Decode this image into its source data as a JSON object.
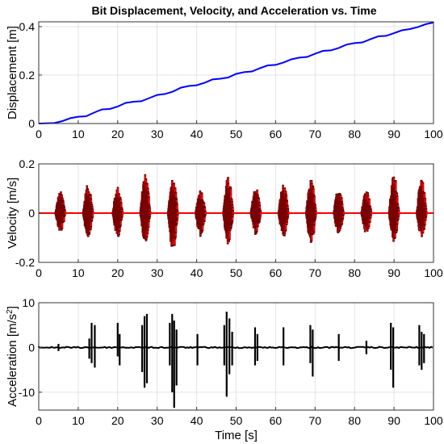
{
  "figure": {
    "title": "Bit Displacement, Velocity, and Acceleration vs. Time"
  },
  "chart_data": [
    {
      "type": "line",
      "ylabel": "Displacement [m]",
      "xlim": [
        0,
        100
      ],
      "ylim": [
        0,
        0.42
      ],
      "x_ticks": [
        0,
        10,
        20,
        30,
        40,
        50,
        60,
        70,
        80,
        90,
        100
      ],
      "x_tick_labels": [
        "0",
        "10",
        "20",
        "30",
        "40",
        "50",
        "60",
        "70",
        "80",
        "90",
        "100"
      ],
      "y_ticks": [
        0,
        0.2,
        0.4
      ],
      "y_tick_labels": [
        "0",
        "0.2",
        "0.4"
      ],
      "grid": true,
      "color": "#0000ff",
      "series": [
        {
          "x": [
            0,
            4,
            6,
            8,
            10,
            12,
            14,
            16,
            18,
            20,
            22,
            24,
            26,
            28,
            30,
            32,
            34,
            36,
            38,
            40,
            42,
            44,
            46,
            48,
            50,
            52,
            54,
            56,
            58,
            60,
            62,
            64,
            66,
            68,
            70,
            72,
            74,
            76,
            78,
            80,
            82,
            84,
            86,
            88,
            90,
            92,
            94,
            96,
            98,
            100
          ],
          "values": [
            0,
            0.002,
            0.01,
            0.022,
            0.028,
            0.03,
            0.045,
            0.058,
            0.06,
            0.07,
            0.085,
            0.09,
            0.092,
            0.105,
            0.118,
            0.122,
            0.132,
            0.148,
            0.155,
            0.158,
            0.168,
            0.182,
            0.185,
            0.19,
            0.205,
            0.212,
            0.215,
            0.228,
            0.24,
            0.242,
            0.252,
            0.265,
            0.272,
            0.275,
            0.288,
            0.3,
            0.302,
            0.312,
            0.326,
            0.332,
            0.335,
            0.348,
            0.36,
            0.362,
            0.373,
            0.385,
            0.39,
            0.398,
            0.41,
            0.417
          ]
        }
      ]
    },
    {
      "type": "line",
      "ylabel": "Velocity [m/s]",
      "xlim": [
        0,
        100
      ],
      "ylim": [
        -0.2,
        0.2
      ],
      "x_ticks": [
        0,
        10,
        20,
        30,
        40,
        50,
        60,
        70,
        80,
        90,
        100
      ],
      "x_tick_labels": [
        "0",
        "10",
        "20",
        "30",
        "40",
        "50",
        "60",
        "70",
        "80",
        "90",
        "100"
      ],
      "y_ticks": [
        -0.2,
        0,
        0.2
      ],
      "y_tick_labels": [
        "-0.2",
        "0",
        "0.2"
      ],
      "grid": true,
      "color": "#ff0000",
      "edge_color": "#5a0000",
      "glow_color": "#ff66cc",
      "oscillation_bursts": [
        {
          "center": 5.5,
          "width": 2.6,
          "max": 0.09,
          "min": -0.08
        },
        {
          "center": 12.5,
          "width": 2.6,
          "max": 0.12,
          "min": -0.1
        },
        {
          "center": 20.0,
          "width": 2.6,
          "max": 0.11,
          "min": -0.1
        },
        {
          "center": 27.0,
          "width": 2.6,
          "max": 0.165,
          "min": -0.12
        },
        {
          "center": 34.0,
          "width": 2.6,
          "max": 0.14,
          "min": -0.155
        },
        {
          "center": 41.0,
          "width": 2.6,
          "max": 0.1,
          "min": -0.1
        },
        {
          "center": 48.0,
          "width": 2.6,
          "max": 0.15,
          "min": -0.13
        },
        {
          "center": 55.0,
          "width": 2.6,
          "max": 0.11,
          "min": -0.09
        },
        {
          "center": 62.0,
          "width": 2.6,
          "max": 0.12,
          "min": -0.1
        },
        {
          "center": 69.0,
          "width": 2.6,
          "max": 0.14,
          "min": -0.13
        },
        {
          "center": 76.0,
          "width": 2.6,
          "max": 0.11,
          "min": -0.09
        },
        {
          "center": 83.0,
          "width": 2.6,
          "max": 0.1,
          "min": -0.09
        },
        {
          "center": 90.0,
          "width": 2.6,
          "max": 0.16,
          "min": -0.12
        },
        {
          "center": 97.0,
          "width": 2.6,
          "max": 0.14,
          "min": -0.1
        }
      ]
    },
    {
      "type": "line",
      "ylabel": "Acceleration [m/s²]",
      "xlabel": "Time [s]",
      "xlim": [
        0,
        100
      ],
      "ylim": [
        -14,
        10
      ],
      "x_ticks": [
        0,
        10,
        20,
        30,
        40,
        50,
        60,
        70,
        80,
        90,
        100
      ],
      "x_tick_labels": [
        "0",
        "10",
        "20",
        "30",
        "40",
        "50",
        "60",
        "70",
        "80",
        "90",
        "100"
      ],
      "y_ticks": [
        -10,
        0,
        10
      ],
      "y_tick_labels": [
        "-10",
        "0",
        "10"
      ],
      "grid": true,
      "color": "#000000",
      "spikes": [
        {
          "x": 5.0,
          "min": -0.8,
          "max": 0.8
        },
        {
          "x": 12.8,
          "min": -2.5,
          "max": 2.0
        },
        {
          "x": 13.4,
          "min": -3.5,
          "max": 5.5
        },
        {
          "x": 14.2,
          "min": -4.5,
          "max": 5.0
        },
        {
          "x": 20.0,
          "min": -2.0,
          "max": 5.5
        },
        {
          "x": 20.5,
          "min": -4.0,
          "max": 3.0
        },
        {
          "x": 26.2,
          "min": -5.5,
          "max": 5.0
        },
        {
          "x": 26.8,
          "min": -9.0,
          "max": 7.0
        },
        {
          "x": 27.4,
          "min": -8.0,
          "max": 7.5
        },
        {
          "x": 33.2,
          "min": -4.0,
          "max": 5.5
        },
        {
          "x": 33.8,
          "min": -10.0,
          "max": 7.5
        },
        {
          "x": 34.3,
          "min": -13.5,
          "max": 6.0
        },
        {
          "x": 34.9,
          "min": -8.5,
          "max": 4.0
        },
        {
          "x": 40.2,
          "min": -4.0,
          "max": 3.0
        },
        {
          "x": 47.0,
          "min": -4.0,
          "max": 5.0
        },
        {
          "x": 47.6,
          "min": -11.0,
          "max": 8.0
        },
        {
          "x": 48.3,
          "min": -6.0,
          "max": 6.5
        },
        {
          "x": 49.0,
          "min": -4.0,
          "max": 3.5
        },
        {
          "x": 54.8,
          "min": -4.0,
          "max": 4.5
        },
        {
          "x": 55.4,
          "min": -3.0,
          "max": 3.0
        },
        {
          "x": 62.0,
          "min": -4.0,
          "max": 4.5
        },
        {
          "x": 68.8,
          "min": -3.5,
          "max": 5.0
        },
        {
          "x": 69.4,
          "min": -6.5,
          "max": 4.0
        },
        {
          "x": 76.0,
          "min": -3.0,
          "max": 3.0
        },
        {
          "x": 83.0,
          "min": -1.5,
          "max": 1.5
        },
        {
          "x": 89.2,
          "min": -5.0,
          "max": 5.5
        },
        {
          "x": 89.8,
          "min": -9.0,
          "max": 4.5
        },
        {
          "x": 96.4,
          "min": -4.0,
          "max": 5.0
        },
        {
          "x": 97.0,
          "min": -5.0,
          "max": 3.5
        },
        {
          "x": 97.6,
          "min": -3.5,
          "max": 3.0
        }
      ]
    }
  ]
}
